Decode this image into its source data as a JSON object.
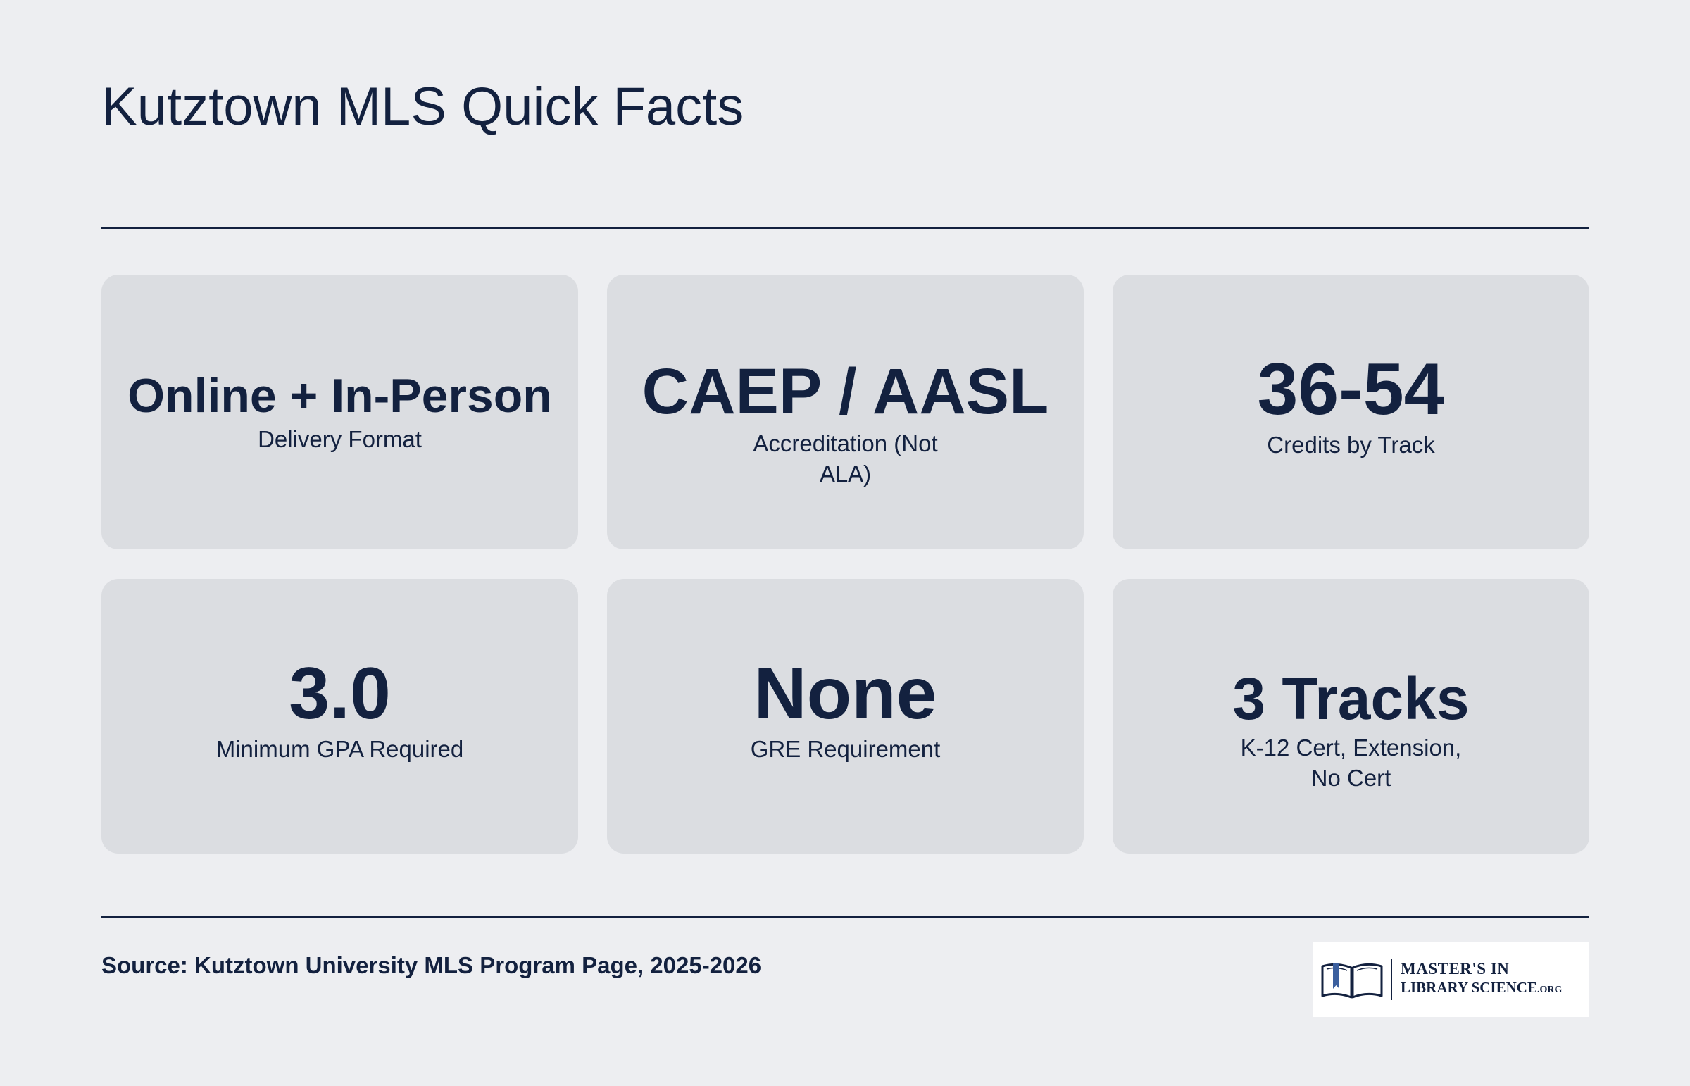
{
  "page": {
    "title": "Kutztown MLS Quick Facts",
    "source": "Source: Kutztown University MLS Program Page, 2025-2026"
  },
  "stats": [
    {
      "value": "Online + In-Person",
      "label": "Delivery Format"
    },
    {
      "value": "CAEP / AASL",
      "label": "Accreditation (Not ALA)"
    },
    {
      "value": "36-54",
      "label": "Credits by Track"
    },
    {
      "value": "3.0",
      "label": "Minimum GPA Required"
    },
    {
      "value": "None",
      "label": "GRE Requirement"
    },
    {
      "value": "3 Tracks",
      "label": "K-12 Cert, Extension, No Cert"
    }
  ],
  "logo": {
    "line1": "MASTER'S IN",
    "line2": "LIBRARY SCIENCE",
    "tld": ".ORG",
    "icon": "open-book-icon"
  },
  "colors": {
    "background": "#edeef1",
    "card": "#dbdde1",
    "text": "#13213f",
    "accent": "#3b5f9e"
  }
}
